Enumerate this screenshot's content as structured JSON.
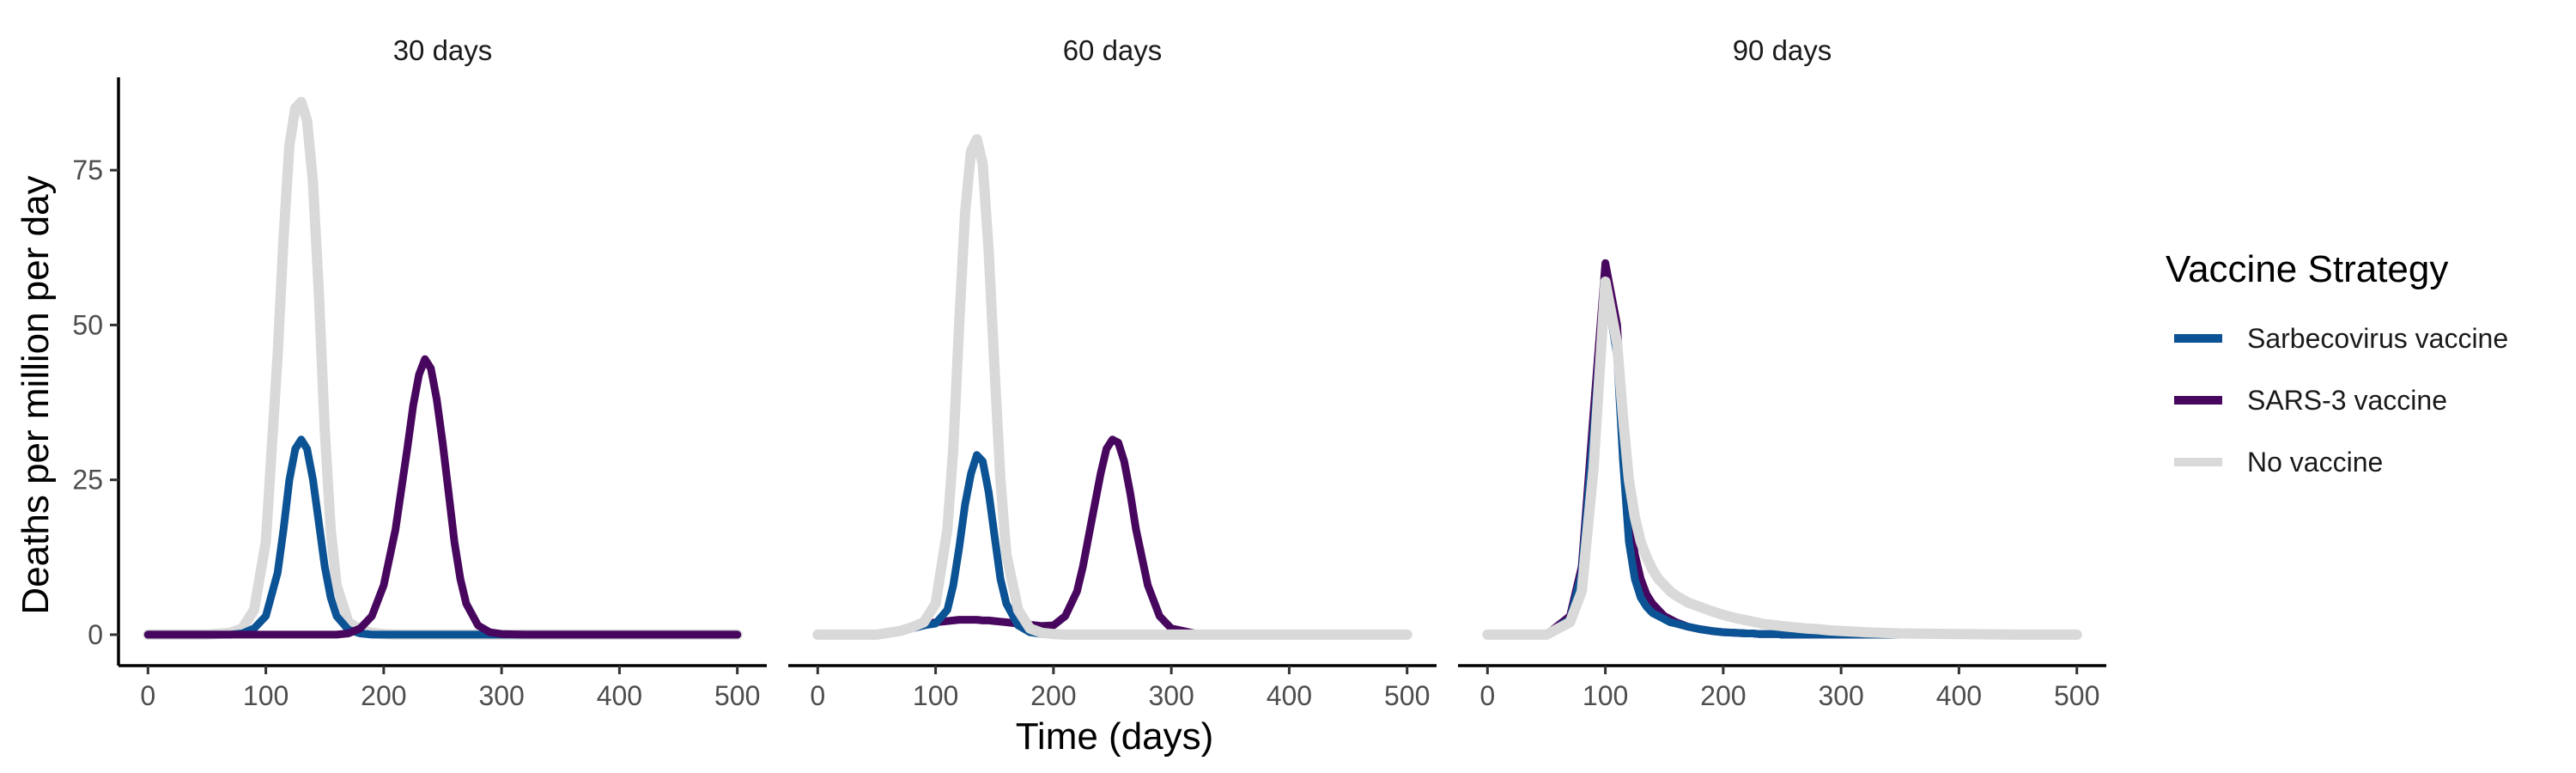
{
  "chart_data": {
    "type": "line",
    "xlabel": "Time (days)",
    "ylabel": "Deaths per million per day",
    "xlim": [
      -25,
      525
    ],
    "ylim": [
      -5,
      90
    ],
    "x_ticks": [
      0,
      100,
      200,
      300,
      400,
      500
    ],
    "y_ticks": [
      0,
      25,
      50,
      75
    ],
    "grid": false,
    "legend": {
      "title": "Vaccine Strategy",
      "position": "right",
      "items": [
        {
          "label": "Sarbecovirus vaccine",
          "color": "#0b5394"
        },
        {
          "label": "SARS-3 vaccine",
          "color": "#48075e"
        },
        {
          "label": "No vaccine",
          "color": "#d9d9d9"
        }
      ]
    },
    "x": [
      0,
      50,
      70,
      80,
      90,
      100,
      110,
      115,
      120,
      125,
      130,
      135,
      140,
      145,
      150,
      155,
      160,
      170,
      180,
      190,
      200,
      210,
      220,
      225,
      230,
      235,
      240,
      245,
      250,
      255,
      260,
      265,
      270,
      280,
      290,
      300,
      320,
      350,
      400,
      450,
      500
    ],
    "panels": [
      {
        "title": "30 days",
        "series": [
          {
            "name": "No vaccine",
            "values": [
              0,
              0,
              0.3,
              1,
              4,
              15,
              45,
              64,
              79,
              85,
              86,
              83,
              73,
              55,
              33,
              17,
              8,
              2,
              0.8,
              0.3,
              0.1,
              0,
              0,
              0,
              0,
              0,
              0,
              0,
              0,
              0,
              0,
              0,
              0,
              0,
              0,
              0,
              0,
              0,
              0,
              0,
              0
            ]
          },
          {
            "name": "Sarbecovirus vaccine",
            "values": [
              0,
              0,
              0,
              0.2,
              1,
              3,
              10,
              17,
              25,
              30,
              31.5,
              30,
              25,
              18,
              11,
              6,
              3,
              0.8,
              0.2,
              0,
              0,
              0,
              0,
              0,
              0,
              0,
              0,
              0,
              0,
              0,
              0,
              0,
              0,
              0,
              0,
              0,
              0,
              0,
              0,
              0,
              0
            ]
          },
          {
            "name": "SARS-3 vaccine",
            "values": [
              0,
              0,
              0,
              0,
              0,
              0,
              0,
              0,
              0,
              0,
              0,
              0,
              0,
              0,
              0,
              0,
              0,
              0.2,
              1,
              3,
              8,
              17,
              30,
              37,
              42,
              44.5,
              43,
              38,
              31,
              23,
              15,
              9,
              5,
              1.5,
              0.4,
              0.1,
              0,
              0,
              0,
              0,
              0
            ]
          }
        ]
      },
      {
        "title": "60 days",
        "series": [
          {
            "name": "SARS-3 vaccine",
            "values": [
              0,
              0,
              0.5,
              1,
              1.5,
              2,
              2.2,
              2.3,
              2.4,
              2.4,
              2.4,
              2.4,
              2.3,
              2.3,
              2.2,
              2.1,
              2,
              1.8,
              1.6,
              1.4,
              1.5,
              3,
              7,
              11,
              16,
              21,
              26,
              30,
              31.5,
              31,
              28,
              23,
              17,
              8,
              3,
              1,
              0.2,
              0,
              0,
              0,
              0
            ]
          },
          {
            "name": "Sarbecovirus vaccine",
            "values": [
              0,
              0,
              0.5,
              1,
              1.5,
              1.8,
              4,
              8,
              14,
              21,
              26,
              29,
              28,
              23,
              16,
              9,
              5,
              1.5,
              0.4,
              0.1,
              0,
              0,
              0,
              0,
              0,
              0,
              0,
              0,
              0,
              0,
              0,
              0,
              0,
              0,
              0,
              0,
              0,
              0,
              0,
              0,
              0
            ]
          },
          {
            "name": "No vaccine",
            "values": [
              0,
              0,
              0.6,
              1.2,
              2,
              5,
              17,
              30,
              50,
              68,
              78,
              80,
              76,
              62,
              43,
              25,
              13,
              4,
              1,
              0.3,
              0.1,
              0,
              0,
              0,
              0,
              0,
              0,
              0,
              0,
              0,
              0,
              0,
              0,
              0,
              0,
              0,
              0,
              0,
              0,
              0,
              0
            ]
          }
        ]
      },
      {
        "title": "90 days",
        "series": [
          {
            "name": "SARS-3 vaccine",
            "values": [
              0,
              0,
              3,
              11,
              36,
              60,
              50,
              33,
              20,
              13,
              9,
              6.5,
              5,
              4,
              3,
              2.5,
              2,
              1.3,
              0.9,
              0.6,
              0.4,
              0.3,
              0.2,
              0.2,
              0.1,
              0.1,
              0.1,
              0.1,
              0,
              0,
              0,
              0,
              0,
              0,
              0,
              0,
              0,
              0,
              0,
              0,
              0
            ]
          },
          {
            "name": "Sarbecovirus vaccine",
            "values": [
              0,
              0,
              2.5,
              10,
              33,
              57,
              45,
              28,
              15,
              9,
              6,
              4.5,
              3.5,
              3,
              2.5,
              2,
              1.8,
              1.3,
              0.9,
              0.6,
              0.4,
              0.3,
              0.2,
              0.2,
              0.1,
              0.1,
              0.1,
              0.1,
              0,
              0,
              0,
              0,
              0,
              0,
              0,
              0,
              0,
              0,
              0,
              0,
              0
            ]
          },
          {
            "name": "No vaccine",
            "values": [
              0,
              0,
              2,
              7,
              27,
              57,
              47,
              35,
              25,
              19,
              15,
              12.5,
              10.5,
              9,
              8,
              7,
              6.3,
              5.2,
              4.5,
              3.8,
              3.2,
              2.7,
              2.3,
              2.1,
              1.9,
              1.7,
              1.6,
              1.5,
              1.4,
              1.3,
              1.2,
              1.1,
              1,
              0.9,
              0.7,
              0.6,
              0.4,
              0.2,
              0.1,
              0,
              0
            ]
          }
        ]
      }
    ]
  }
}
